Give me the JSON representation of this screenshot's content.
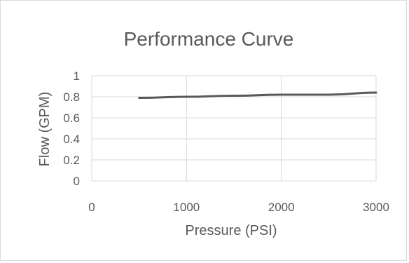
{
  "chart_data": {
    "type": "scatter",
    "title": "Performance Curve",
    "xlabel": "Pressure (PSI)",
    "ylabel": "Flow (GPM)",
    "xlim": [
      0,
      3000
    ],
    "ylim": [
      0,
      1
    ],
    "xticks": [
      0,
      1000,
      2000,
      3000
    ],
    "xtick_labels": [
      "0",
      "1000",
      "2000",
      "3000"
    ],
    "yticks": [
      0,
      0.2,
      0.4,
      0.6,
      0.8,
      1
    ],
    "ytick_labels": [
      "0",
      "0.2",
      "0.4",
      "0.6",
      "0.8",
      "1"
    ],
    "grid": true,
    "legend": "none",
    "series": [
      {
        "x": [
          500,
          1000,
          1500,
          2000,
          2500,
          3000
        ],
        "y": [
          0.79,
          0.8,
          0.81,
          0.82,
          0.82,
          0.84
        ],
        "color": "#595959",
        "style": "smooth line"
      }
    ]
  }
}
